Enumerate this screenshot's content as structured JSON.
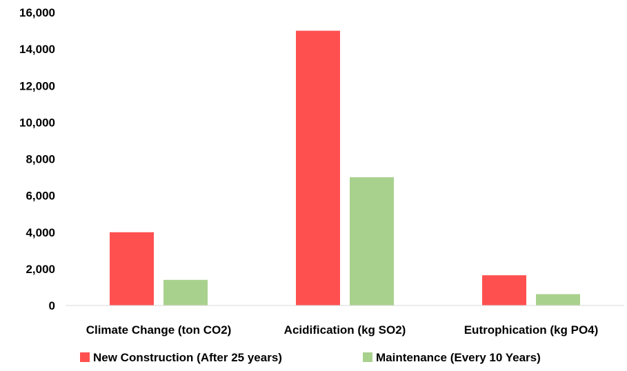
{
  "chart_data": {
    "type": "bar",
    "categories": [
      "Climate Change (ton CO2)",
      "Acidification (kg SO2)",
      "Eutrophication (kg PO4)"
    ],
    "series": [
      {
        "name": "New Construction (After 25 years)",
        "color": "#ff5050",
        "values": [
          4000,
          15000,
          1650
        ]
      },
      {
        "name": "Maintenance (Every 10 Years)",
        "color": "#a9d18e",
        "values": [
          1400,
          7000,
          620
        ]
      }
    ],
    "title": "",
    "xlabel": "",
    "ylabel": "",
    "ylim": [
      0,
      16000
    ],
    "yticks": [
      0,
      2000,
      4000,
      6000,
      8000,
      10000,
      12000,
      14000,
      16000
    ],
    "ytick_labels": [
      "0",
      "2,000",
      "4,000",
      "6,000",
      "8,000",
      "10,000",
      "12,000",
      "14,000",
      "16,000"
    ],
    "grid": false,
    "legend_position": "bottom",
    "axis_color": "#d9d9d9"
  }
}
